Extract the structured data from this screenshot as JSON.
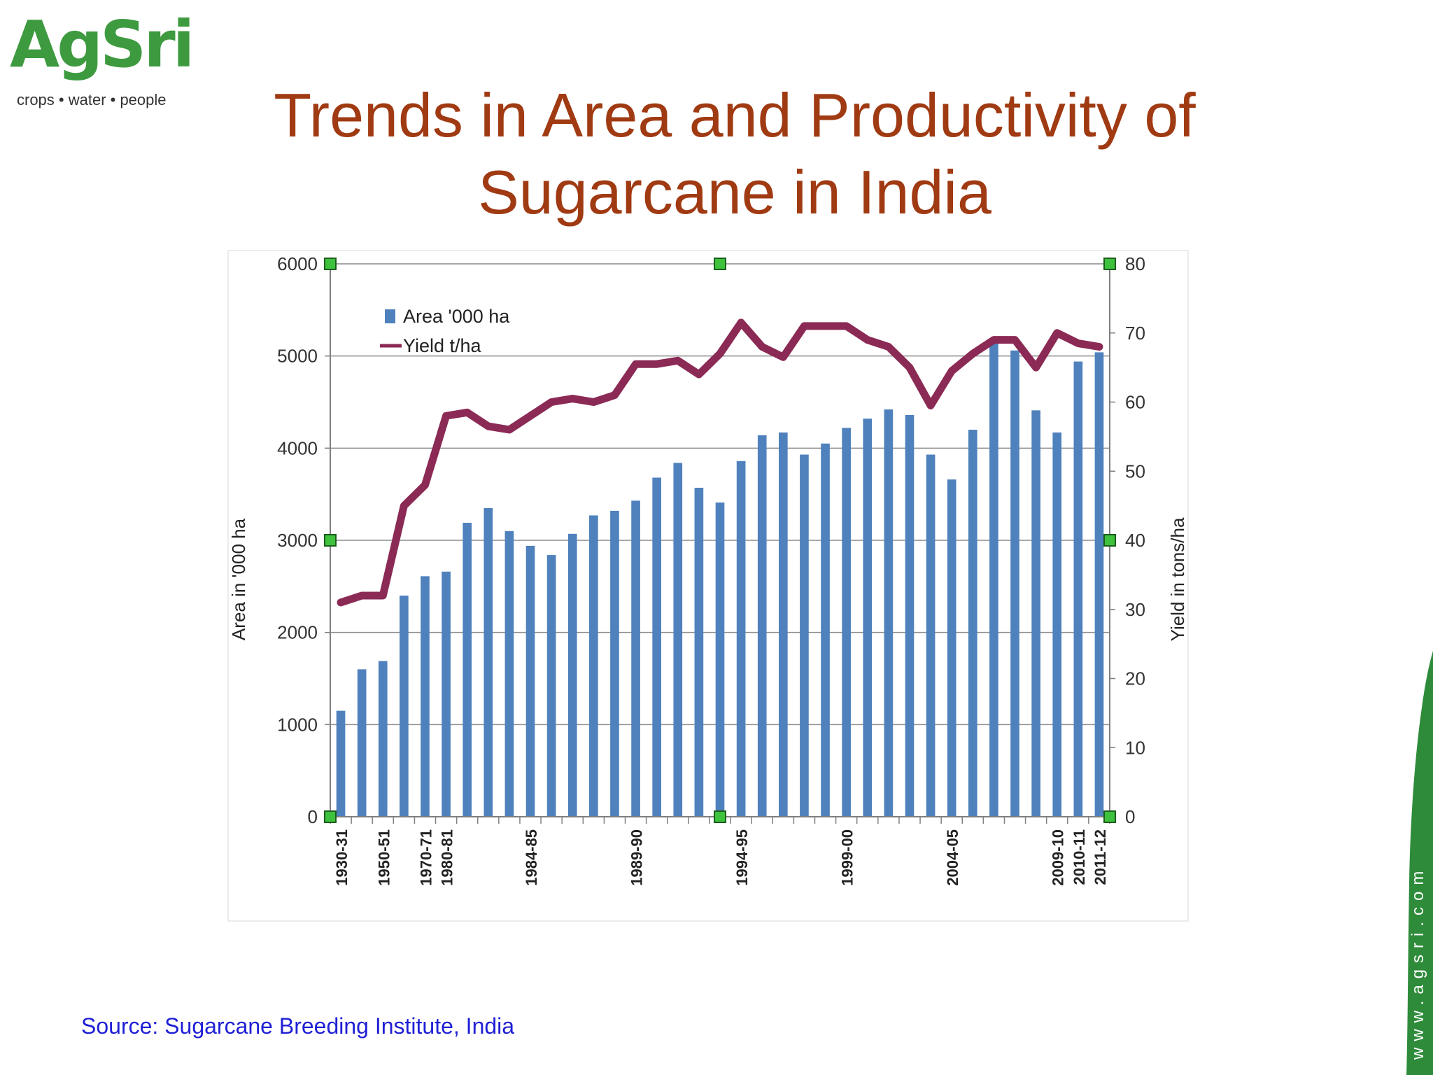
{
  "logo": {
    "brand": "AgSri",
    "tagline": "crops • water • people"
  },
  "slide": {
    "title_line1": "Trends in Area and Productivity of",
    "title_line2": "Sugarcane in India",
    "source": "Source: Sugarcane Breeding Institute, India",
    "website": "www.agsri.com"
  },
  "colors": {
    "title": "#a03a12",
    "bar": "#4f81bd",
    "line": "#8b2a55",
    "source": "#1f1fd6",
    "brand_green": "#3d9a3f"
  },
  "chart_data": {
    "type": "bar",
    "combo_line_series": "Yield t/ha",
    "ylabel": "Area in '000 ha",
    "y2label": "Yield in tons/ha",
    "ylim": [
      0,
      6000
    ],
    "y2lim": [
      0,
      80
    ],
    "yticks": [
      0,
      1000,
      2000,
      3000,
      4000,
      5000,
      6000
    ],
    "y2ticks": [
      0,
      10,
      20,
      30,
      40,
      50,
      60,
      70,
      80
    ],
    "grid": true,
    "legend_position": "top-left",
    "series": [
      {
        "name": "Area '000 ha",
        "type": "bar",
        "axis": "left",
        "values": [
          1150,
          1600,
          1690,
          2400,
          2610,
          2660,
          3190,
          3350,
          3100,
          2940,
          2840,
          3070,
          3270,
          3320,
          3430,
          3680,
          3840,
          3570,
          3410,
          3860,
          4140,
          4170,
          3930,
          4050,
          4220,
          4320,
          4420,
          4360,
          3930,
          3660,
          4200,
          5150,
          5060,
          4410,
          4170,
          4940,
          5040
        ]
      },
      {
        "name": "Yield t/ha",
        "type": "line",
        "axis": "right",
        "values": [
          31,
          32,
          32,
          45,
          48,
          58,
          58.5,
          56.5,
          56,
          58,
          60,
          60.5,
          60,
          61,
          65.5,
          65.5,
          66,
          64,
          67,
          71.5,
          68,
          66.5,
          71,
          71,
          71,
          69,
          68,
          65,
          59.5,
          64.5,
          67,
          69,
          69,
          65,
          70,
          68.5,
          68
        ]
      }
    ],
    "x_tick_labels": [
      {
        "index": 0,
        "label": "1930-31"
      },
      {
        "index": 2,
        "label": "1950-51"
      },
      {
        "index": 4,
        "label": "1970-71"
      },
      {
        "index": 5,
        "label": "1980-81"
      },
      {
        "index": 9,
        "label": "1984-85"
      },
      {
        "index": 14,
        "label": "1989-90"
      },
      {
        "index": 19,
        "label": "1994-95"
      },
      {
        "index": 24,
        "label": "1999-00"
      },
      {
        "index": 29,
        "label": "2004-05"
      },
      {
        "index": 34,
        "label": "2009-10"
      },
      {
        "index": 35,
        "label": "2010-11"
      },
      {
        "index": 36,
        "label": "2011-12"
      }
    ]
  }
}
